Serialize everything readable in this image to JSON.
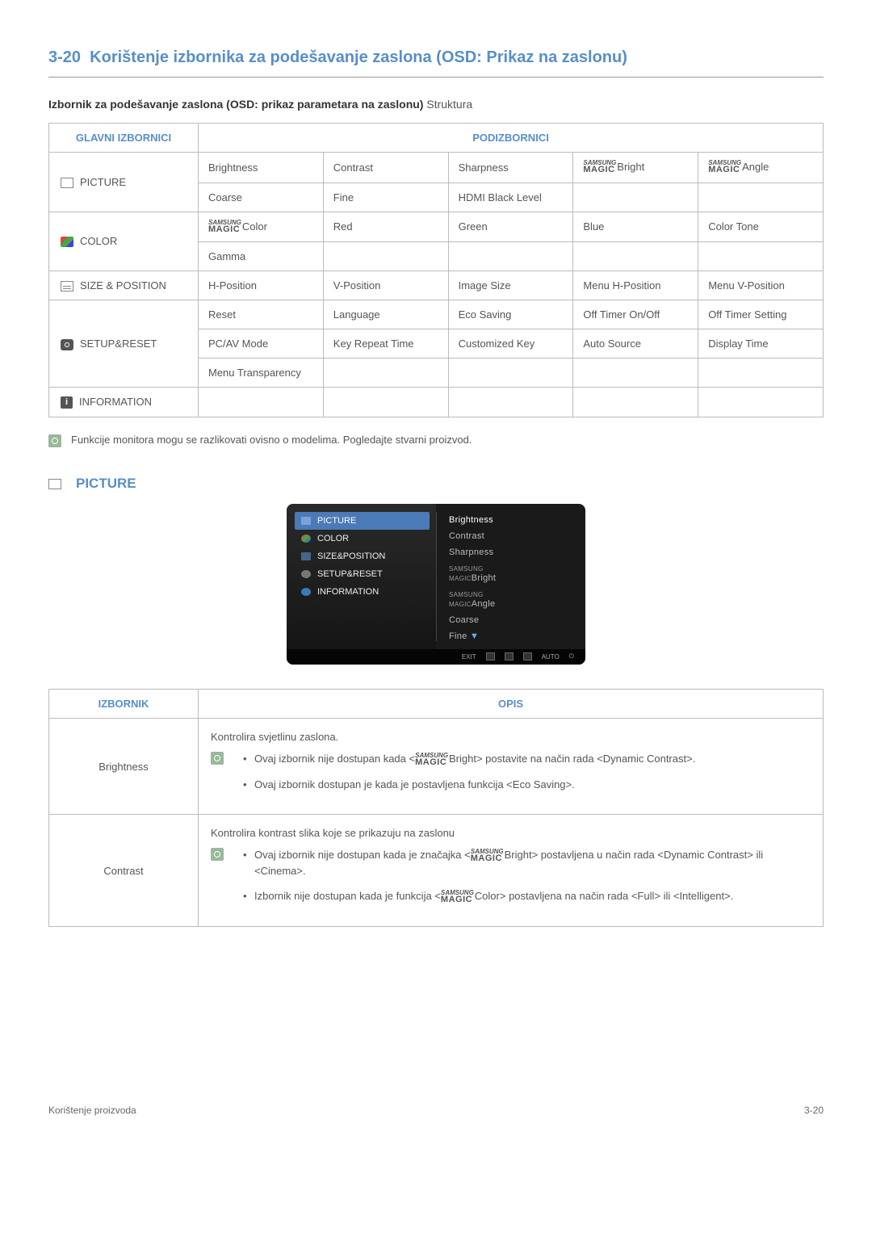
{
  "section": {
    "number": "3-20",
    "title": "Korištenje izbornika za podešavanje zaslona (OSD: Prikaz na zaslonu)"
  },
  "subtitle": {
    "bold": "Izbornik za podešavanje zaslona (OSD: prikaz parametara na zaslonu)",
    "rest": " Struktura"
  },
  "thead": {
    "glavni": "GLAVNI IZBORNICI",
    "pod": "PODIZBORNICI"
  },
  "menus": {
    "picture": "PICTURE",
    "color": "COLOR",
    "size": "SIZE & POSITION",
    "setup": "SETUP&RESET",
    "info": "INFORMATION"
  },
  "cells": {
    "brightness": "Brightness",
    "contrast": "Contrast",
    "sharpness": "Sharpness",
    "smBright": "Bright",
    "smAngle": "Angle",
    "coarse": "Coarse",
    "fine": "Fine",
    "hdmiBlack": "HDMI Black Level",
    "smColor": "Color",
    "red": "Red",
    "green": "Green",
    "blue": "Blue",
    "colorTone": "Color Tone",
    "gamma": "Gamma",
    "hpos": "H-Position",
    "vpos": "V-Position",
    "imgSize": "Image Size",
    "menuH": "Menu H-Position",
    "menuV": "Menu V-Position",
    "reset": "Reset",
    "language": "Language",
    "ecoSaving": "Eco Saving",
    "offTimerOnOff": "Off Timer On/Off",
    "offTimerSetting": "Off Timer Setting",
    "pcav": "PC/AV Mode",
    "keyRepeat": "Key Repeat Time",
    "customKey": "Customized Key",
    "autoSource": "Auto Source",
    "displayTime": "Display Time",
    "menuTrans": "Menu Transparency"
  },
  "note1": "Funkcije monitora mogu se razlikovati ovisno o modelima. Pogledajte stvarni proizvod.",
  "pictureHeading": "PICTURE",
  "osd": {
    "left": [
      "PICTURE",
      "COLOR",
      "SIZE&POSITION",
      "SETUP&RESET",
      "INFORMATION"
    ],
    "right": [
      "Brightness",
      "Contrast",
      "Sharpness",
      "Bright",
      "Angle",
      "Coarse",
      "Fine"
    ],
    "footer": {
      "exit": "EXIT",
      "auto": "AUTO"
    }
  },
  "descHead": {
    "izbornik": "IZBORNIK",
    "opis": "OPIS"
  },
  "desc": {
    "brightness": {
      "name": "Brightness",
      "intro": "Kontrolira svjetlinu zaslona.",
      "b1a": "Ovaj izbornik nije dostupan kada <",
      "b1b": "Bright> postavite na način rada <Dynamic Contrast>.",
      "b2": "Ovaj izbornik dostupan je kada je postavljena funkcija <Eco Saving>."
    },
    "contrast": {
      "name": "Contrast",
      "intro": "Kontrolira kontrast slika koje se prikazuju na zaslonu",
      "b1a": "Ovaj izbornik nije dostupan kada je značajka <",
      "b1b": "Bright> postavljena u način rada <Dynamic Contrast> ili <Cinema>.",
      "b2a": "Izbornik nije dostupan kada je funkcija <",
      "b2b": "Color> postavljena na način rada <Full> ili <Intelligent>."
    }
  },
  "footer": {
    "left": "Korištenje proizvoda",
    "right": "3-20"
  }
}
